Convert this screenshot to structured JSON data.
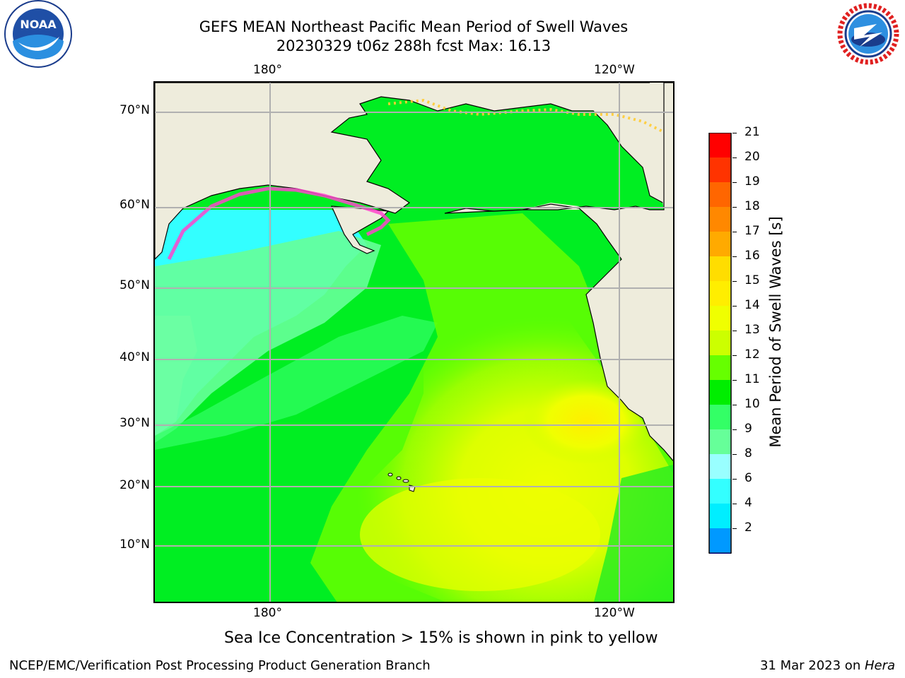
{
  "header": {
    "title_line1": "GEFS MEAN Northeast Pacific Mean Period of Swell Waves",
    "title_line2": "20230329 t06z 288h fcst   Max: 16.13"
  },
  "logos": {
    "left": "NOAA",
    "right": "NATIONAL WEATHER SERVICE"
  },
  "map": {
    "lon_labels_top": [
      "180°",
      "120°W"
    ],
    "lon_labels_bottom": [
      "180°",
      "120°W"
    ],
    "lat_labels": [
      "70°N",
      "60°N",
      "50°N",
      "40°N",
      "30°N",
      "20°N",
      "10°N"
    ],
    "land_color": "#eeecdc",
    "grid_color": "#b0b0b0"
  },
  "colorbar": {
    "title": "Mean Period of Swell Waves [s]",
    "ticks": [
      "21",
      "20",
      "19",
      "18",
      "17",
      "16",
      "15",
      "14",
      "13",
      "12",
      "11",
      "10",
      "9",
      "8",
      "6",
      "4",
      "2"
    ],
    "colors": [
      "#ff0000",
      "#ff3300",
      "#ff6600",
      "#ff8800",
      "#ffaa00",
      "#ffdd00",
      "#ffee00",
      "#f0ff00",
      "#ccff00",
      "#66ff00",
      "#00ee00",
      "#33ff66",
      "#66ff99",
      "#99ffff",
      "#33ffff",
      "#00eeff",
      "#0099ff"
    ],
    "under_color": "#0000ff"
  },
  "caption": "Sea Ice Concentration > 15% is shown in pink to yellow",
  "footer": {
    "left": "NCEP/EMC/Verification Post Processing Product Generation Branch",
    "right_date": "31 Mar 2023 on ",
    "right_host": "Hera"
  }
}
